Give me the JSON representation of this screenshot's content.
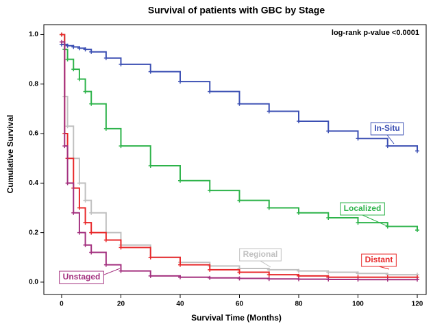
{
  "chart_data": {
    "type": "line",
    "step": true,
    "title": "Survival of patients with GBC by Stage",
    "annotation": "log-rank p-value <0.0001",
    "x_label": "Survival Time (Months)",
    "y_label": "Cumulative Survival",
    "x": [
      0,
      1,
      2,
      4,
      6,
      8,
      10,
      15,
      20,
      30,
      40,
      50,
      60,
      70,
      80,
      90,
      100,
      110,
      120
    ],
    "series": [
      {
        "name": "In-Situ",
        "color": "#3b4fb3",
        "values": [
          0.96,
          0.96,
          0.955,
          0.95,
          0.945,
          0.94,
          0.93,
          0.905,
          0.88,
          0.85,
          0.81,
          0.77,
          0.72,
          0.69,
          0.65,
          0.61,
          0.58,
          0.55,
          0.53
        ]
      },
      {
        "name": "Localized",
        "color": "#2db34a",
        "values": [
          1.0,
          0.94,
          0.9,
          0.86,
          0.82,
          0.77,
          0.72,
          0.62,
          0.55,
          0.47,
          0.41,
          0.37,
          0.33,
          0.3,
          0.28,
          0.26,
          0.24,
          0.225,
          0.21
        ]
      },
      {
        "name": "Regional",
        "color": "#c0c0c0",
        "values": [
          1.0,
          0.75,
          0.63,
          0.5,
          0.4,
          0.33,
          0.28,
          0.2,
          0.15,
          0.1,
          0.08,
          0.065,
          0.055,
          0.05,
          0.045,
          0.04,
          0.035,
          0.03,
          0.03
        ]
      },
      {
        "name": "Distant",
        "color": "#e8282a",
        "values": [
          1.0,
          0.6,
          0.5,
          0.38,
          0.3,
          0.24,
          0.2,
          0.17,
          0.14,
          0.1,
          0.07,
          0.05,
          0.04,
          0.03,
          0.025,
          0.02,
          0.02,
          0.02,
          0.02
        ]
      },
      {
        "name": "Unstaged",
        "color": "#a3307f",
        "values": [
          0.97,
          0.55,
          0.4,
          0.28,
          0.2,
          0.15,
          0.12,
          0.07,
          0.045,
          0.025,
          0.02,
          0.017,
          0.015,
          0.013,
          0.012,
          0.011,
          0.01,
          0.01,
          0.01
        ]
      }
    ],
    "xlim": [
      -6,
      123
    ],
    "ylim": [
      -0.05,
      1.04
    ],
    "xticks": [
      0,
      20,
      40,
      60,
      80,
      100,
      120
    ],
    "yticks": [
      {
        "value": 0,
        "label": "0.0"
      },
      {
        "value": 0.2,
        "label": "0.2"
      },
      {
        "value": 0.4,
        "label": "0.4"
      },
      {
        "value": 0.6,
        "label": "0.6"
      },
      {
        "value": 0.8,
        "label": "0.8"
      },
      {
        "value": 1,
        "label": "1.0"
      }
    ]
  }
}
